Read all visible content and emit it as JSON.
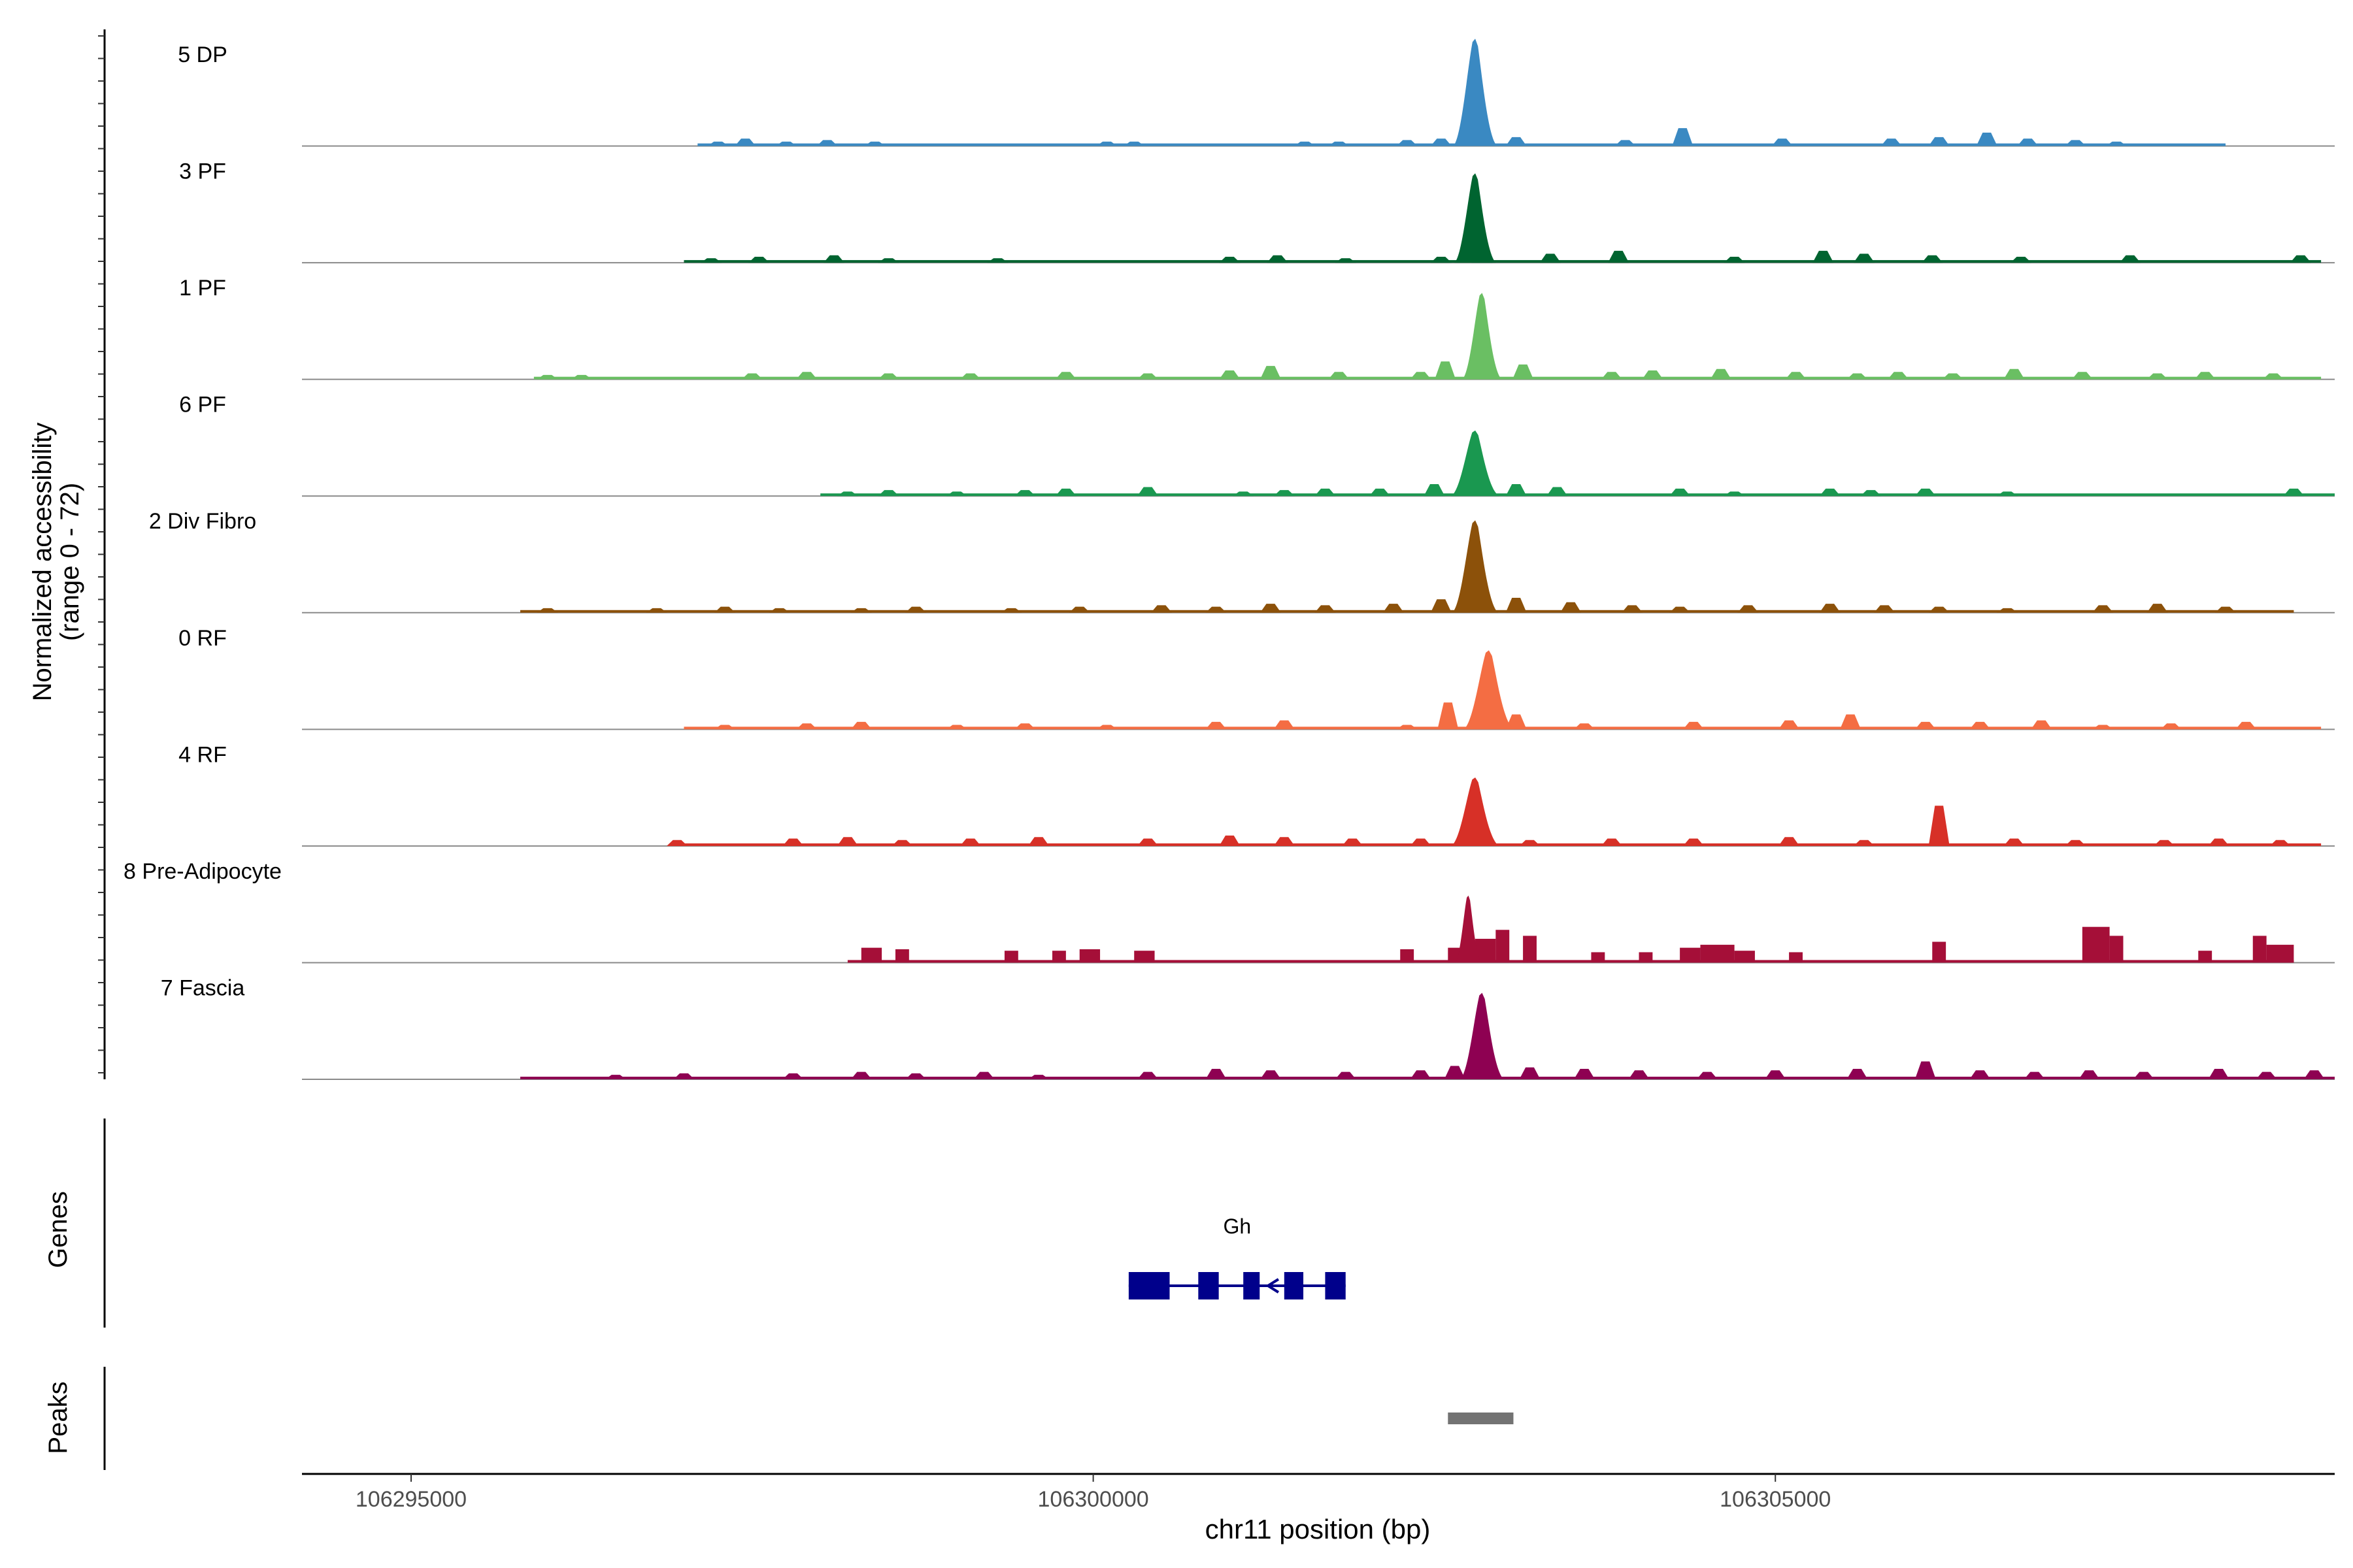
{
  "chart_data": {
    "type": "area",
    "xlabel": "chr11 position (bp)",
    "ylabel": "Normalized accessibility",
    "ylabel_sub": "(range 0 - 72)",
    "xlim": [
      106294200,
      106309100
    ],
    "x_ticks": [
      "106295000",
      "106300000",
      "106305000"
    ],
    "x_tick_values": [
      106295000,
      106300000,
      106305000
    ],
    "y_range": [
      0,
      72
    ],
    "grid": false,
    "legend": "none",
    "series": [
      {
        "name": "5 DP",
        "color": "#3A89C2",
        "base": [
          106297100,
          106308300
        ],
        "peaks": [
          [
            106297250,
            3
          ],
          [
            106297450,
            5
          ],
          [
            106297750,
            3
          ],
          [
            106298050,
            4
          ],
          [
            106298400,
            3
          ],
          [
            106300100,
            3
          ],
          [
            106300300,
            3
          ],
          [
            106301550,
            3
          ],
          [
            106301800,
            3
          ],
          [
            106302300,
            4
          ],
          [
            106302550,
            5
          ],
          [
            106302850,
            10
          ],
          [
            106303100,
            6
          ],
          [
            106303900,
            4
          ],
          [
            106304320,
            12
          ],
          [
            106305050,
            5
          ],
          [
            106305850,
            5
          ],
          [
            106306200,
            6
          ],
          [
            106306550,
            9
          ],
          [
            106306850,
            5
          ],
          [
            106307200,
            4
          ],
          [
            106307500,
            3
          ]
        ],
        "main": {
          "x": 106302800,
          "height": 72,
          "width": 100
        }
      },
      {
        "name": "3 PF",
        "color": "#006430",
        "base": [
          106297000,
          106309000
        ],
        "peaks": [
          [
            106297200,
            3
          ],
          [
            106297550,
            4
          ],
          [
            106298100,
            5
          ],
          [
            106298500,
            3
          ],
          [
            106299300,
            3
          ],
          [
            106301000,
            4
          ],
          [
            106301350,
            5
          ],
          [
            106301850,
            3
          ],
          [
            106302550,
            4
          ],
          [
            106302850,
            6
          ],
          [
            106303350,
            6
          ],
          [
            106303850,
            8
          ],
          [
            106304700,
            4
          ],
          [
            106305350,
            8
          ],
          [
            106305650,
            6
          ],
          [
            106306150,
            5
          ],
          [
            106306800,
            4
          ],
          [
            106307600,
            5
          ],
          [
            106308850,
            5
          ]
        ],
        "main": {
          "x": 106302800,
          "height": 60,
          "width": 95
        }
      },
      {
        "name": "1 PF",
        "color": "#6ABF63",
        "base": [
          106295900,
          106309000
        ],
        "peaks": [
          [
            106296000,
            3
          ],
          [
            106296250,
            3
          ],
          [
            106297500,
            4
          ],
          [
            106297900,
            5
          ],
          [
            106298500,
            4
          ],
          [
            106299100,
            4
          ],
          [
            106299800,
            5
          ],
          [
            106300400,
            4
          ],
          [
            106301000,
            6
          ],
          [
            106301300,
            9
          ],
          [
            106301800,
            5
          ],
          [
            106302400,
            5
          ],
          [
            106302580,
            12
          ],
          [
            106303150,
            10
          ],
          [
            106303800,
            5
          ],
          [
            106304100,
            6
          ],
          [
            106304600,
            7
          ],
          [
            106305150,
            5
          ],
          [
            106305600,
            4
          ],
          [
            106305900,
            5
          ],
          [
            106306300,
            4
          ],
          [
            106306750,
            7
          ],
          [
            106307250,
            5
          ],
          [
            106307800,
            4
          ],
          [
            106308150,
            5
          ],
          [
            106308650,
            4
          ]
        ],
        "main": {
          "x": 106302850,
          "height": 58,
          "width": 90
        }
      },
      {
        "name": "6 PF",
        "color": "#1A9850",
        "base": [
          106298000,
          106309100
        ],
        "peaks": [
          [
            106298200,
            3
          ],
          [
            106298500,
            4
          ],
          [
            106299000,
            3
          ],
          [
            106299500,
            4
          ],
          [
            106299800,
            5
          ],
          [
            106300400,
            6
          ],
          [
            106301100,
            3
          ],
          [
            106301400,
            4
          ],
          [
            106301700,
            5
          ],
          [
            106302100,
            5
          ],
          [
            106302500,
            8
          ],
          [
            106303100,
            8
          ],
          [
            106303400,
            6
          ],
          [
            106304300,
            5
          ],
          [
            106304700,
            3
          ],
          [
            106305400,
            5
          ],
          [
            106305700,
            4
          ],
          [
            106306100,
            5
          ],
          [
            106306700,
            3
          ],
          [
            106308800,
            5
          ]
        ],
        "main": {
          "x": 106302800,
          "height": 44,
          "width": 110
        }
      },
      {
        "name": "2 Div Fibro",
        "color": "#8C510A",
        "base": [
          106295800,
          106308800
        ],
        "peaks": [
          [
            106296000,
            3
          ],
          [
            106296800,
            3
          ],
          [
            106297300,
            4
          ],
          [
            106297700,
            3
          ],
          [
            106298300,
            3
          ],
          [
            106298700,
            4
          ],
          [
            106299400,
            3
          ],
          [
            106299900,
            4
          ],
          [
            106300500,
            5
          ],
          [
            106300900,
            4
          ],
          [
            106301300,
            6
          ],
          [
            106301700,
            5
          ],
          [
            106302200,
            6
          ],
          [
            106302550,
            9
          ],
          [
            106303100,
            10
          ],
          [
            106303500,
            7
          ],
          [
            106303950,
            5
          ],
          [
            106304300,
            4
          ],
          [
            106304800,
            5
          ],
          [
            106305400,
            6
          ],
          [
            106305800,
            5
          ],
          [
            106306200,
            4
          ],
          [
            106306700,
            3
          ],
          [
            106307400,
            5
          ],
          [
            106307800,
            6
          ],
          [
            106308300,
            4
          ]
        ],
        "main": {
          "x": 106302800,
          "height": 62,
          "width": 105
        }
      },
      {
        "name": "0 RF",
        "color": "#F46D43",
        "base": [
          106297000,
          106309000
        ],
        "peaks": [
          [
            106297300,
            3
          ],
          [
            106297900,
            4
          ],
          [
            106298300,
            5
          ],
          [
            106299000,
            3
          ],
          [
            106299500,
            4
          ],
          [
            106300100,
            3
          ],
          [
            106300900,
            5
          ],
          [
            106301400,
            6
          ],
          [
            106302300,
            3
          ],
          [
            106302600,
            18
          ],
          [
            106303100,
            10
          ],
          [
            106303600,
            4
          ],
          [
            106304400,
            5
          ],
          [
            106305100,
            6
          ],
          [
            106305550,
            10
          ],
          [
            106306100,
            5
          ],
          [
            106306500,
            5
          ],
          [
            106306950,
            6
          ],
          [
            106307400,
            3
          ],
          [
            106307900,
            4
          ],
          [
            106308450,
            5
          ]
        ],
        "main": {
          "x": 106302900,
          "height": 53,
          "width": 115
        }
      },
      {
        "name": "4 RF",
        "color": "#D73027",
        "base": [
          106296900,
          106309000
        ],
        "peaks": [
          [
            106296950,
            4
          ],
          [
            106297800,
            5
          ],
          [
            106298200,
            6
          ],
          [
            106298600,
            4
          ],
          [
            106299100,
            5
          ],
          [
            106299600,
            6
          ],
          [
            106300400,
            5
          ],
          [
            106301000,
            7
          ],
          [
            106301400,
            6
          ],
          [
            106301900,
            5
          ],
          [
            106302400,
            5
          ],
          [
            106303200,
            4
          ],
          [
            106303800,
            5
          ],
          [
            106304400,
            5
          ],
          [
            106305100,
            6
          ],
          [
            106305650,
            4
          ],
          [
            106306200,
            27
          ],
          [
            106306750,
            5
          ],
          [
            106307200,
            4
          ],
          [
            106307850,
            4
          ],
          [
            106308250,
            5
          ],
          [
            106308700,
            4
          ]
        ],
        "main": {
          "x": 106302800,
          "height": 46,
          "width": 110
        }
      },
      {
        "name": "8 Pre-Adipocyte",
        "color": "#A50F38",
        "base": [
          106298200,
          106308800
        ],
        "peaks": [],
        "blocks": [
          [
            106298300,
            106298450,
            10
          ],
          [
            106298550,
            106298650,
            9
          ],
          [
            106299350,
            106299450,
            8
          ],
          [
            106299700,
            106299800,
            8
          ],
          [
            106299900,
            106300050,
            9
          ],
          [
            106300300,
            106300450,
            8
          ],
          [
            106302250,
            106302350,
            9
          ],
          [
            106302600,
            106302700,
            10
          ],
          [
            106302800,
            106302950,
            16
          ],
          [
            106302950,
            106303050,
            22
          ],
          [
            106303150,
            106303250,
            18
          ],
          [
            106303650,
            106303750,
            7
          ],
          [
            106304000,
            106304100,
            7
          ],
          [
            106304300,
            106304450,
            10
          ],
          [
            106304450,
            106304700,
            12
          ],
          [
            106304700,
            106304850,
            8
          ],
          [
            106305100,
            106305200,
            7
          ],
          [
            106306150,
            106306250,
            14
          ],
          [
            106307250,
            106307450,
            24
          ],
          [
            106307450,
            106307550,
            18
          ],
          [
            106308100,
            106308200,
            8
          ],
          [
            106308500,
            106308600,
            18
          ],
          [
            106308600,
            106308800,
            12
          ]
        ],
        "main": {
          "x": 106302750,
          "height": 45,
          "width": 60
        }
      },
      {
        "name": "7 Fascia",
        "color": "#8E0152",
        "base": [
          106295800,
          106309100
        ],
        "peaks": [
          [
            106296500,
            3
          ],
          [
            106297000,
            4
          ],
          [
            106297800,
            4
          ],
          [
            106298300,
            5
          ],
          [
            106298700,
            4
          ],
          [
            106299200,
            5
          ],
          [
            106299600,
            3
          ],
          [
            106300400,
            5
          ],
          [
            106300900,
            7
          ],
          [
            106301300,
            6
          ],
          [
            106301850,
            5
          ],
          [
            106302400,
            6
          ],
          [
            106302650,
            9
          ],
          [
            106303200,
            8
          ],
          [
            106303600,
            7
          ],
          [
            106304000,
            6
          ],
          [
            106304500,
            5
          ],
          [
            106305000,
            6
          ],
          [
            106305600,
            7
          ],
          [
            106306100,
            12
          ],
          [
            106306500,
            6
          ],
          [
            106306900,
            5
          ],
          [
            106307300,
            6
          ],
          [
            106307700,
            5
          ],
          [
            106308250,
            7
          ],
          [
            106308600,
            5
          ],
          [
            106308950,
            6
          ]
        ],
        "main": {
          "x": 106302850,
          "height": 58,
          "width": 100
        }
      }
    ],
    "genes_label": "Genes",
    "gene": {
      "name": "Gh",
      "start": 106300260,
      "end": 106301850,
      "strand": "-",
      "exons": [
        [
          106300260,
          106300560
        ],
        [
          106300770,
          106300920
        ],
        [
          106301100,
          106301220
        ],
        [
          106301400,
          106301540
        ],
        [
          106301700,
          106301850
        ]
      ]
    },
    "peaks_label": "Peaks",
    "peaks_track": [
      [
        106302600,
        106303080
      ]
    ]
  }
}
